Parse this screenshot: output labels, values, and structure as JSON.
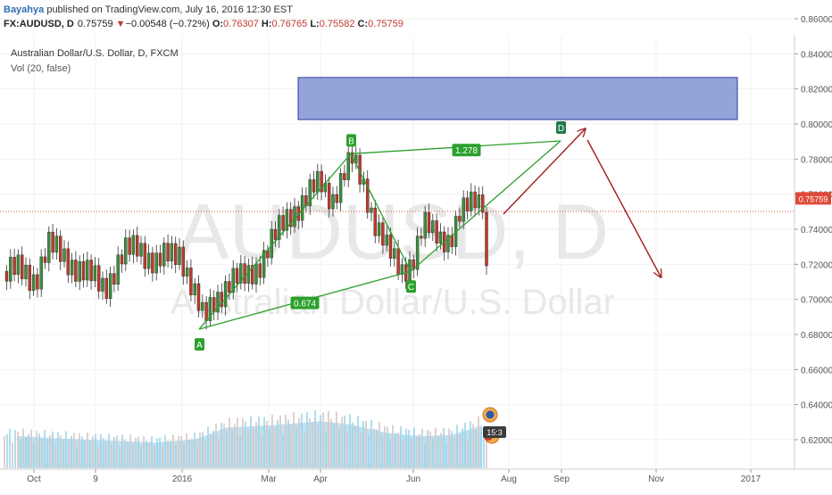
{
  "header": {
    "author": "Bayahya",
    "published_text": " published on TradingView.com, July 16, 2016 12:30 EST",
    "symbol": "FX:AUDUSD, D",
    "last": "0.75759",
    "change_arrow": "▼",
    "change": "−0.00548 (−0.72%)",
    "o_label": "O:",
    "o_value": "0.76307",
    "h_label": "H:",
    "h_value": "0.76765",
    "l_label": "L:",
    "l_value": "0.75582",
    "c_label": "C:",
    "c_value": "0.75759"
  },
  "series_title": "Australian Dollar/U.S. Dollar, D, FXCM",
  "volume_label": "Vol (20, false)",
  "watermark": {
    "symbol": "AUDUSD, D",
    "name": "Australian Dollar/U.S. Dollar"
  },
  "colors": {
    "up": "#3c8f3c",
    "down": "#c0392b",
    "pattern": "#2ca02c",
    "zone_fill": "#6f85cf",
    "zone_border": "#2b3f9a",
    "arrow": "#a01c1c",
    "volume": "#8ac7e6",
    "price_line": "#e04a3a"
  },
  "chart_data": {
    "type": "line",
    "title": "Australian Dollar/U.S. Dollar, D, FXCM",
    "xlabel": "",
    "ylabel": "",
    "ylim": [
      0.605,
      0.865
    ],
    "yticks": [
      "0.86000",
      "0.84000",
      "0.82000",
      "0.80000",
      "0.78000",
      "0.76000",
      "0.74000",
      "0.72000",
      "0.70000",
      "0.68000",
      "0.66000",
      "0.64000",
      "0.62000"
    ],
    "xticks": [
      "Oct",
      "9",
      "2016",
      "Mar",
      "Apr",
      "Jun",
      "Aug",
      "Sep",
      "Nov",
      "2017"
    ],
    "current_price": 0.75759,
    "current_price_label": "0.75759",
    "price_trace": [
      {
        "x": "Sep 21",
        "y": 0.716
      },
      {
        "x": "Oct 1",
        "y": 0.712
      },
      {
        "x": "Oct 9",
        "y": 0.73
      },
      {
        "x": "Oct 20",
        "y": 0.724
      },
      {
        "x": "Nov 1",
        "y": 0.714
      },
      {
        "x": "Nov 13",
        "y": 0.708
      },
      {
        "x": "Nov 25",
        "y": 0.725
      },
      {
        "x": "Dec 4",
        "y": 0.731
      },
      {
        "x": "Dec 15",
        "y": 0.72
      },
      {
        "x": "Dec 30",
        "y": 0.728
      },
      {
        "x": "Jan 8",
        "y": 0.704
      },
      {
        "x": "Jan 15",
        "y": 0.687
      },
      {
        "x": "Jan 22",
        "y": 0.7
      },
      {
        "x": "Feb 1",
        "y": 0.709
      },
      {
        "x": "Feb 12",
        "y": 0.712
      },
      {
        "x": "Feb 24",
        "y": 0.722
      },
      {
        "x": "Mar 4",
        "y": 0.735
      },
      {
        "x": "Mar 12",
        "y": 0.749
      },
      {
        "x": "Mar 22",
        "y": 0.756
      },
      {
        "x": "Mar 31",
        "y": 0.767
      },
      {
        "x": "Apr 8",
        "y": 0.758
      },
      {
        "x": "Apr 21",
        "y": 0.779
      },
      {
        "x": "Apr 28",
        "y": 0.768
      },
      {
        "x": "May 6",
        "y": 0.743
      },
      {
        "x": "May 14",
        "y": 0.727
      },
      {
        "x": "May 24",
        "y": 0.718
      },
      {
        "x": "May 31",
        "y": 0.722
      },
      {
        "x": "Jun 7",
        "y": 0.741
      },
      {
        "x": "Jun 15",
        "y": 0.739
      },
      {
        "x": "Jun 24",
        "y": 0.733
      },
      {
        "x": "Jun 30",
        "y": 0.746
      },
      {
        "x": "Jul 9",
        "y": 0.76
      },
      {
        "x": "Jul 15",
        "y": 0.7576
      }
    ],
    "volume_series": [
      {
        "x": "Sep 21",
        "y": 30
      },
      {
        "x": "Oct 15",
        "y": 28
      },
      {
        "x": "Nov 15",
        "y": 26
      },
      {
        "x": "Dec 15",
        "y": 24
      },
      {
        "x": "Jan 10",
        "y": 27
      },
      {
        "x": "Feb 1",
        "y": 38
      },
      {
        "x": "Mar 1",
        "y": 40
      },
      {
        "x": "Apr 1",
        "y": 44
      },
      {
        "x": "Apr 20",
        "y": 41
      },
      {
        "x": "May 15",
        "y": 33
      },
      {
        "x": "Jun 5",
        "y": 30
      },
      {
        "x": "Jun 25",
        "y": 31
      },
      {
        "x": "Jul 15",
        "y": 40
      }
    ],
    "pattern": {
      "points": [
        {
          "label": "A",
          "x": "Jan 15",
          "y": 0.683
        },
        {
          "label": "B",
          "x": "Apr 21",
          "y": 0.783
        },
        {
          "label": "C",
          "x": "May 25",
          "y": 0.716
        },
        {
          "label": "D",
          "x": "Sep 1",
          "y": 0.804
        }
      ],
      "ratios": [
        {
          "label": "0.674",
          "between": "A-C"
        },
        {
          "label": "1.278",
          "between": "B-D"
        }
      ]
    },
    "target_zone": {
      "x_start": "Apr 8",
      "x_end": "Dec 20",
      "y_low": 0.8025,
      "y_high": 0.8265
    },
    "projection": [
      {
        "x": "Jul 20",
        "y": 0.757
      },
      {
        "x": "Sep 20",
        "y": 0.808
      },
      {
        "x": "Nov 5",
        "y": 0.718
      }
    ]
  }
}
